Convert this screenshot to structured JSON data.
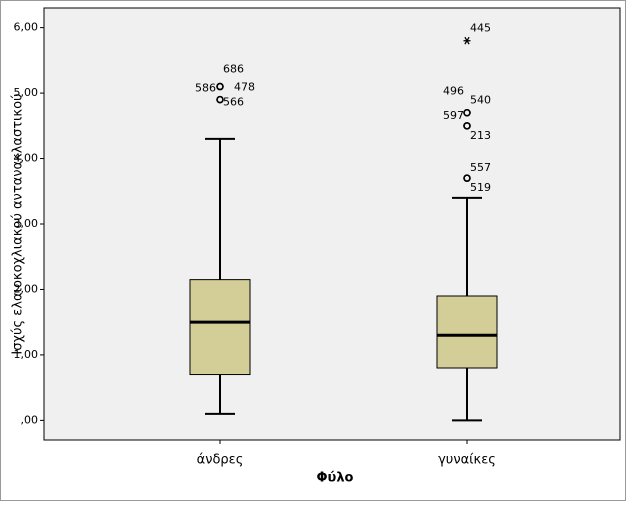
{
  "chart_data": {
    "type": "box",
    "x_label": "Φύλο",
    "y_label": "Ισχύς ελαιοκοχλιακού αντανακλαστικού",
    "categories": [
      "άνδρες",
      "γυναίκες"
    ],
    "color": "#d3ce97",
    "ylim": [
      -0.3,
      6.3
    ],
    "yticks": [
      {
        "value": 0,
        "label": ",00"
      },
      {
        "value": 1,
        "label": "1,00"
      },
      {
        "value": 2,
        "label": "2,00"
      },
      {
        "value": 3,
        "label": "3,00"
      },
      {
        "value": 4,
        "label": "4,00"
      },
      {
        "value": 5,
        "label": "5,00"
      },
      {
        "value": 6,
        "label": "6,00"
      }
    ],
    "boxes": [
      {
        "whisker_low": 0.1,
        "q1": 0.7,
        "median": 1.5,
        "q3": 2.15,
        "whisker_high": 4.3,
        "outliers": [
          {
            "label": "686",
            "value": 5.1
          },
          {
            "label": "478",
            "value": 5.1
          },
          {
            "label": "586",
            "value": 4.9
          },
          {
            "label": "566",
            "value": 4.9
          }
        ],
        "extremes": []
      },
      {
        "whisker_low": 0,
        "q1": 0.8,
        "median": 1.3,
        "q3": 1.9,
        "whisker_high": 3.4,
        "outliers": [
          {
            "label": "496",
            "value": 4.7
          },
          {
            "label": "540",
            "value": 4.7
          },
          {
            "label": "597",
            "value": 4.5
          },
          {
            "label": "213",
            "value": 4.5
          },
          {
            "label": "557",
            "value": 3.7
          },
          {
            "label": "519",
            "value": 3.7
          }
        ],
        "extremes": [
          {
            "label": "445",
            "value": 5.8
          }
        ]
      }
    ]
  }
}
